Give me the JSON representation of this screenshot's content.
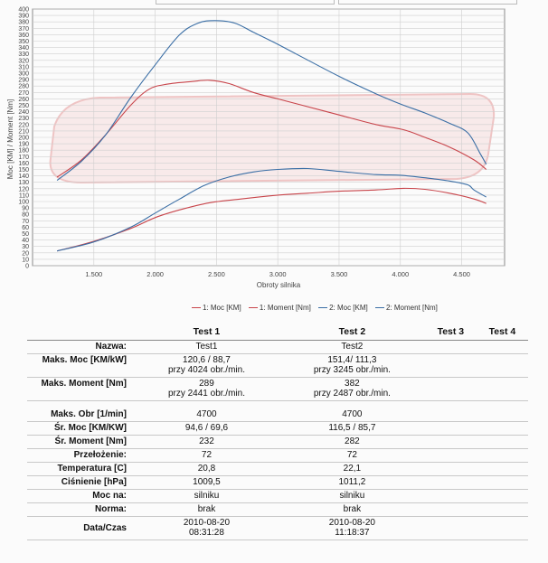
{
  "chart_data": {
    "type": "line",
    "xlabel": "Obroty silnika",
    "ylabel": "Moc [KM] / Moment [Nm]",
    "xlim": [
      1000,
      4850
    ],
    "ylim": [
      0,
      400
    ],
    "x_ticks": [
      "1.500",
      "2.000",
      "2.500",
      "3.000",
      "3.500",
      "4.000",
      "4.500"
    ],
    "x_tick_values": [
      1500,
      2000,
      2500,
      3000,
      3500,
      4000,
      4500
    ],
    "y_ticks": [
      0,
      10,
      20,
      30,
      40,
      50,
      60,
      70,
      80,
      90,
      100,
      110,
      120,
      130,
      140,
      150,
      160,
      170,
      180,
      190,
      200,
      210,
      220,
      230,
      240,
      250,
      260,
      270,
      280,
      290,
      300,
      310,
      320,
      330,
      340,
      350,
      360,
      370,
      380,
      390,
      400
    ],
    "grid": true,
    "legend_position": "bottom",
    "series": [
      {
        "name": "1: Moc [KM]",
        "color": "#c8444a",
        "points": [
          [
            1200,
            23
          ],
          [
            1500,
            38
          ],
          [
            1800,
            58
          ],
          [
            2000,
            75
          ],
          [
            2200,
            87
          ],
          [
            2441,
            98
          ],
          [
            2700,
            104
          ],
          [
            3000,
            110
          ],
          [
            3245,
            113
          ],
          [
            3500,
            116
          ],
          [
            3800,
            118
          ],
          [
            4024,
            120.6
          ],
          [
            4200,
            119
          ],
          [
            4400,
            113
          ],
          [
            4600,
            104
          ],
          [
            4700,
            97
          ]
        ]
      },
      {
        "name": "1: Moment [Nm]",
        "color": "#c8444a",
        "points": [
          [
            1200,
            138
          ],
          [
            1400,
            165
          ],
          [
            1600,
            205
          ],
          [
            1800,
            250
          ],
          [
            1950,
            275
          ],
          [
            2100,
            283
          ],
          [
            2300,
            287
          ],
          [
            2441,
            289
          ],
          [
            2600,
            284
          ],
          [
            2800,
            270
          ],
          [
            3000,
            260
          ],
          [
            3200,
            250
          ],
          [
            3500,
            235
          ],
          [
            3800,
            220
          ],
          [
            4024,
            212
          ],
          [
            4200,
            200
          ],
          [
            4400,
            185
          ],
          [
            4600,
            165
          ],
          [
            4700,
            150
          ]
        ]
      },
      {
        "name": "2: Moc [KM]",
        "color": "#3a6ea5",
        "points": [
          [
            1200,
            23
          ],
          [
            1500,
            37
          ],
          [
            1800,
            60
          ],
          [
            2000,
            82
          ],
          [
            2200,
            104
          ],
          [
            2400,
            125
          ],
          [
            2600,
            138
          ],
          [
            2800,
            146
          ],
          [
            3000,
            150
          ],
          [
            3245,
            151.4
          ],
          [
            3500,
            147
          ],
          [
            3800,
            142
          ],
          [
            4000,
            141
          ],
          [
            4200,
            137
          ],
          [
            4400,
            132
          ],
          [
            4550,
            126
          ],
          [
            4600,
            118
          ],
          [
            4700,
            107
          ]
        ]
      },
      {
        "name": "2: Moment [Nm]",
        "color": "#3a6ea5",
        "points": [
          [
            1200,
            133
          ],
          [
            1400,
            163
          ],
          [
            1600,
            205
          ],
          [
            1800,
            262
          ],
          [
            2000,
            313
          ],
          [
            2200,
            360
          ],
          [
            2350,
            378
          ],
          [
            2487,
            382
          ],
          [
            2650,
            378
          ],
          [
            2800,
            364
          ],
          [
            3000,
            345
          ],
          [
            3200,
            325
          ],
          [
            3500,
            295
          ],
          [
            3800,
            268
          ],
          [
            4000,
            252
          ],
          [
            4200,
            238
          ],
          [
            4400,
            222
          ],
          [
            4550,
            207
          ],
          [
            4650,
            175
          ],
          [
            4700,
            158
          ]
        ]
      }
    ]
  },
  "legend": [
    {
      "label": "1: Moc [KM]",
      "color": "#c8444a"
    },
    {
      "label": "1: Moment [Nm]",
      "color": "#c8444a"
    },
    {
      "label": "2: Moc [KM]",
      "color": "#3a6ea5"
    },
    {
      "label": "2: Moment [Nm]",
      "color": "#3a6ea5"
    }
  ],
  "table": {
    "headers": [
      "Test 1",
      "Test 2",
      "Test 3",
      "Test 4"
    ],
    "rows": [
      {
        "label": "Nazwa:",
        "t1": "Test1",
        "t2": "Test2"
      },
      {
        "label": "Maks. Moc [KM/kW]",
        "t1": "120,6 / 88,7",
        "t1b": "przy 4024 obr./min.",
        "t2": "151,4/ 111,3",
        "t2b": "przy 3245 obr./min."
      },
      {
        "label": "Maks. Moment [Nm]",
        "t1": "289",
        "t1b": "przy 2441 obr./min.",
        "t2": "382",
        "t2b": "przy 2487 obr./min."
      },
      {
        "label": "Maks. Obr [1/min]",
        "t1": "4700",
        "t2": "4700"
      },
      {
        "label": "Śr. Moc [KM/KW]",
        "t1": "94,6 / 69,6",
        "t2": "116,5 / 85,7"
      },
      {
        "label": "Śr. Moment [Nm]",
        "t1": "232",
        "t2": "282"
      },
      {
        "label": "Przełożenie:",
        "t1": "72",
        "t2": "72"
      },
      {
        "label": "Temperatura [C]",
        "t1": "20,8",
        "t2": "22,1"
      },
      {
        "label": "Ciśnienie [hPa]",
        "t1": "1009,5",
        "t2": "1011,2"
      },
      {
        "label": "Moc na:",
        "t1": "silniku",
        "t2": "silniku"
      },
      {
        "label": "Norma:",
        "t1": "brak",
        "t2": "brak"
      },
      {
        "label": "Data/Czas",
        "t1": "2010-08-20",
        "t1b": "08:31:28",
        "t2": "2010-08-20",
        "t2b": "11:18:37"
      }
    ]
  }
}
